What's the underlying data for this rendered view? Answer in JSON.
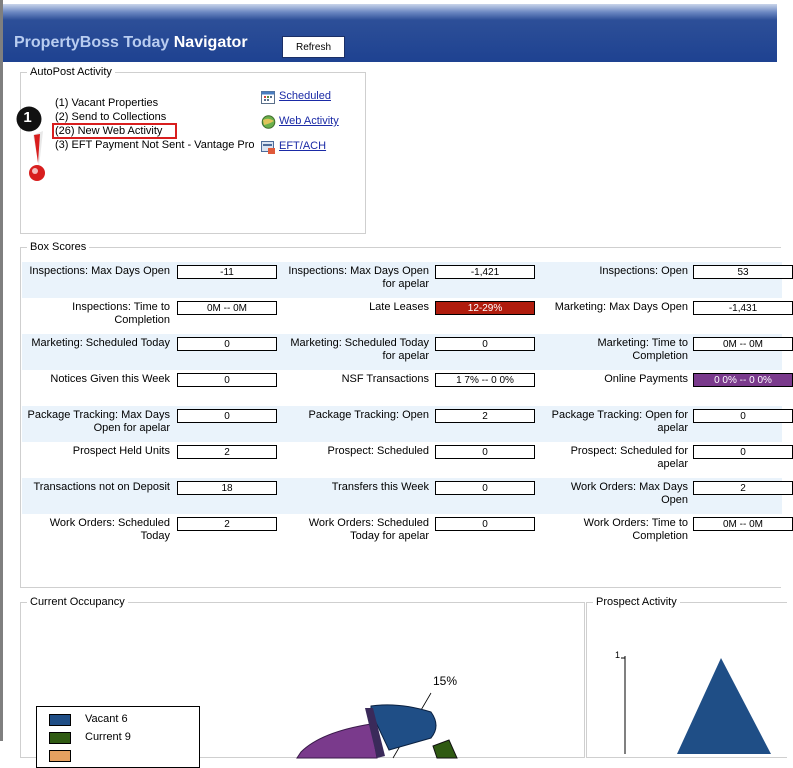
{
  "header": {
    "title_part1": "PropertyBoss Today",
    "title_part2": "Navigator",
    "refresh_label": "Refresh"
  },
  "autopost": {
    "legend": "AutoPost Activity",
    "items": [
      "(1) Vacant Properties",
      "(2) Send to Collections",
      "(26) New Web Activity",
      "(3) EFT Payment Not Sent - Vantage Pro"
    ],
    "links": [
      "Scheduled",
      "Web Activity",
      "EFT/ACH"
    ],
    "callout_number": "1"
  },
  "boxscores": {
    "legend": "Box Scores",
    "rows": [
      [
        {
          "label": "Inspections: Max Days Open",
          "value": "-11"
        },
        {
          "label": "Inspections: Max Days Open for apelar",
          "value": "-1,421"
        },
        {
          "label": "Inspections: Open",
          "value": "53"
        }
      ],
      [
        {
          "label": "Inspections: Time to Completion",
          "value": "0M -- 0M"
        },
        {
          "label": "Late Leases",
          "value": "12-29%",
          "style": "red"
        },
        {
          "label": "Marketing: Max Days Open",
          "value": "-1,431"
        }
      ],
      [
        {
          "label": "Marketing: Scheduled Today",
          "value": "0"
        },
        {
          "label": "Marketing: Scheduled Today for apelar",
          "value": "0"
        },
        {
          "label": "Marketing: Time to Completion",
          "value": "0M -- 0M"
        }
      ],
      [
        {
          "label": "Notices Given this Week",
          "value": "0"
        },
        {
          "label": "NSF Transactions",
          "value": "1 7% -- 0 0%"
        },
        {
          "label": "Online Payments",
          "value": "0 0% -- 0 0%",
          "style": "purple"
        }
      ],
      [
        {
          "label": "Package Tracking: Max Days Open for apelar",
          "value": "0"
        },
        {
          "label": "Package Tracking: Open",
          "value": "2"
        },
        {
          "label": "Package Tracking: Open for apelar",
          "value": "0"
        }
      ],
      [
        {
          "label": "Prospect Held Units",
          "value": "2"
        },
        {
          "label": "Prospect: Scheduled",
          "value": "0"
        },
        {
          "label": "Prospect: Scheduled for apelar",
          "value": "0"
        }
      ],
      [
        {
          "label": "Transactions not on Deposit",
          "value": "18"
        },
        {
          "label": "Transfers this Week",
          "value": "0"
        },
        {
          "label": "Work Orders: Max Days Open",
          "value": "2"
        }
      ],
      [
        {
          "label": "Work Orders: Scheduled Today",
          "value": "2"
        },
        {
          "label": "Work Orders: Scheduled Today for apelar",
          "value": "0"
        },
        {
          "label": "Work Orders: Time to Completion",
          "value": "0M -- 0M"
        }
      ]
    ]
  },
  "occupancy": {
    "legend": "Current Occupancy",
    "pie_label": "15%",
    "legend_items": [
      {
        "label": "Vacant 6",
        "color": "#1f4e86"
      },
      {
        "label": "Current 9",
        "color": "#2f5a12"
      },
      {
        "label": "",
        "color": "#e4a060"
      }
    ]
  },
  "prospect": {
    "legend": "Prospect Activity",
    "axis_tick": "1"
  },
  "colors": {
    "header_blue": "#1e4291",
    "highlight_red": "#d81e1e",
    "late_leases_bg": "#b01c0d",
    "online_payments_bg": "#7a3a8c",
    "row_shade": "#eaf3fb",
    "link_blue": "#1a2aa6"
  }
}
